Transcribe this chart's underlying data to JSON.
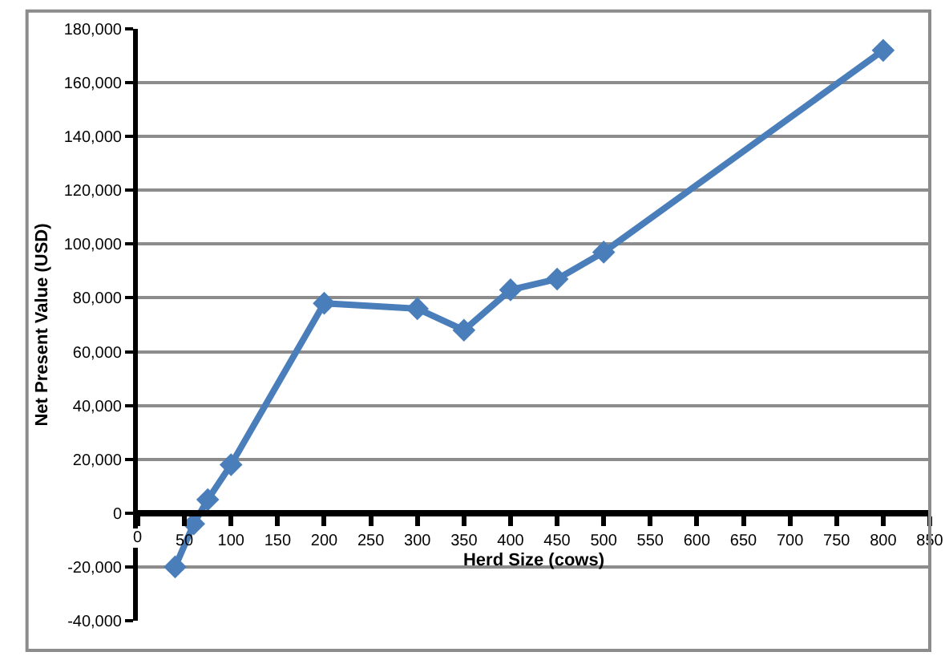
{
  "chart_data": {
    "type": "line",
    "xlabel": "Herd Size (cows)",
    "ylabel": "Net Present Value (USD)",
    "x": [
      40,
      60,
      75,
      100,
      200,
      300,
      350,
      400,
      450,
      500,
      800
    ],
    "series": [
      {
        "color": "#4a7ebb",
        "values": [
          -20000,
          -4000,
          5000,
          18000,
          78000,
          76000,
          68000,
          83000,
          87000,
          97000,
          172000
        ]
      }
    ],
    "xlim": [
      0,
      850
    ],
    "xticks": [
      0,
      50,
      100,
      150,
      200,
      250,
      300,
      350,
      400,
      450,
      500,
      550,
      600,
      650,
      700,
      750,
      800,
      850
    ],
    "ylim": [
      -40000,
      180000
    ],
    "yticks": [
      {
        "value": -40000,
        "label": "-40,000"
      },
      {
        "value": -20000,
        "label": "-20,000"
      },
      {
        "value": 0,
        "label": "0"
      },
      {
        "value": 20000,
        "label": "20,000"
      },
      {
        "value": 40000,
        "label": "40,000"
      },
      {
        "value": 60000,
        "label": "60,000"
      },
      {
        "value": 80000,
        "label": "80,000"
      },
      {
        "value": 100000,
        "label": "100,000"
      },
      {
        "value": 120000,
        "label": "120,000"
      },
      {
        "value": 140000,
        "label": "140,000"
      },
      {
        "value": 160000,
        "label": "160,000"
      },
      {
        "value": 180000,
        "label": "180,000"
      }
    ],
    "grid": "y",
    "legend": false,
    "marker": "diamond",
    "line_style": "solid"
  }
}
